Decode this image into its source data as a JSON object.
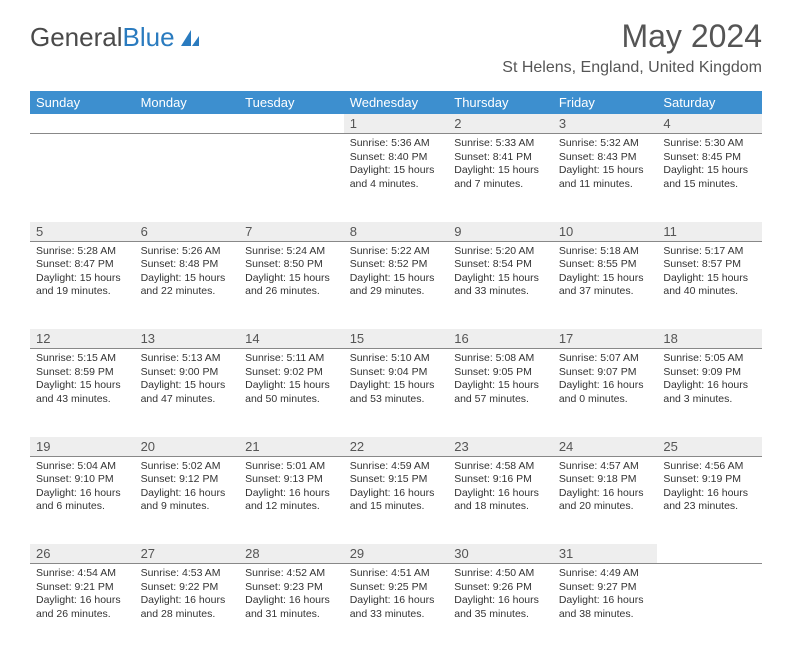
{
  "logo": {
    "text1": "General",
    "text2": "Blue"
  },
  "title": "May 2024",
  "location": "St Helens, England, United Kingdom",
  "colors": {
    "header_bg": "#3d8fcf",
    "header_text": "#ffffff",
    "daynum_bg": "#eeeeee",
    "text": "#333333",
    "title_text": "#555555",
    "logo_gray": "#4a4a4a",
    "logo_blue": "#2a7bbf"
  },
  "weekdays": [
    "Sunday",
    "Monday",
    "Tuesday",
    "Wednesday",
    "Thursday",
    "Friday",
    "Saturday"
  ],
  "weeks": [
    [
      null,
      null,
      null,
      {
        "n": "1",
        "sunrise": "5:36 AM",
        "sunset": "8:40 PM",
        "daylight": "15 hours and 4 minutes."
      },
      {
        "n": "2",
        "sunrise": "5:33 AM",
        "sunset": "8:41 PM",
        "daylight": "15 hours and 7 minutes."
      },
      {
        "n": "3",
        "sunrise": "5:32 AM",
        "sunset": "8:43 PM",
        "daylight": "15 hours and 11 minutes."
      },
      {
        "n": "4",
        "sunrise": "5:30 AM",
        "sunset": "8:45 PM",
        "daylight": "15 hours and 15 minutes."
      }
    ],
    [
      {
        "n": "5",
        "sunrise": "5:28 AM",
        "sunset": "8:47 PM",
        "daylight": "15 hours and 19 minutes."
      },
      {
        "n": "6",
        "sunrise": "5:26 AM",
        "sunset": "8:48 PM",
        "daylight": "15 hours and 22 minutes."
      },
      {
        "n": "7",
        "sunrise": "5:24 AM",
        "sunset": "8:50 PM",
        "daylight": "15 hours and 26 minutes."
      },
      {
        "n": "8",
        "sunrise": "5:22 AM",
        "sunset": "8:52 PM",
        "daylight": "15 hours and 29 minutes."
      },
      {
        "n": "9",
        "sunrise": "5:20 AM",
        "sunset": "8:54 PM",
        "daylight": "15 hours and 33 minutes."
      },
      {
        "n": "10",
        "sunrise": "5:18 AM",
        "sunset": "8:55 PM",
        "daylight": "15 hours and 37 minutes."
      },
      {
        "n": "11",
        "sunrise": "5:17 AM",
        "sunset": "8:57 PM",
        "daylight": "15 hours and 40 minutes."
      }
    ],
    [
      {
        "n": "12",
        "sunrise": "5:15 AM",
        "sunset": "8:59 PM",
        "daylight": "15 hours and 43 minutes."
      },
      {
        "n": "13",
        "sunrise": "5:13 AM",
        "sunset": "9:00 PM",
        "daylight": "15 hours and 47 minutes."
      },
      {
        "n": "14",
        "sunrise": "5:11 AM",
        "sunset": "9:02 PM",
        "daylight": "15 hours and 50 minutes."
      },
      {
        "n": "15",
        "sunrise": "5:10 AM",
        "sunset": "9:04 PM",
        "daylight": "15 hours and 53 minutes."
      },
      {
        "n": "16",
        "sunrise": "5:08 AM",
        "sunset": "9:05 PM",
        "daylight": "15 hours and 57 minutes."
      },
      {
        "n": "17",
        "sunrise": "5:07 AM",
        "sunset": "9:07 PM",
        "daylight": "16 hours and 0 minutes."
      },
      {
        "n": "18",
        "sunrise": "5:05 AM",
        "sunset": "9:09 PM",
        "daylight": "16 hours and 3 minutes."
      }
    ],
    [
      {
        "n": "19",
        "sunrise": "5:04 AM",
        "sunset": "9:10 PM",
        "daylight": "16 hours and 6 minutes."
      },
      {
        "n": "20",
        "sunrise": "5:02 AM",
        "sunset": "9:12 PM",
        "daylight": "16 hours and 9 minutes."
      },
      {
        "n": "21",
        "sunrise": "5:01 AM",
        "sunset": "9:13 PM",
        "daylight": "16 hours and 12 minutes."
      },
      {
        "n": "22",
        "sunrise": "4:59 AM",
        "sunset": "9:15 PM",
        "daylight": "16 hours and 15 minutes."
      },
      {
        "n": "23",
        "sunrise": "4:58 AM",
        "sunset": "9:16 PM",
        "daylight": "16 hours and 18 minutes."
      },
      {
        "n": "24",
        "sunrise": "4:57 AM",
        "sunset": "9:18 PM",
        "daylight": "16 hours and 20 minutes."
      },
      {
        "n": "25",
        "sunrise": "4:56 AM",
        "sunset": "9:19 PM",
        "daylight": "16 hours and 23 minutes."
      }
    ],
    [
      {
        "n": "26",
        "sunrise": "4:54 AM",
        "sunset": "9:21 PM",
        "daylight": "16 hours and 26 minutes."
      },
      {
        "n": "27",
        "sunrise": "4:53 AM",
        "sunset": "9:22 PM",
        "daylight": "16 hours and 28 minutes."
      },
      {
        "n": "28",
        "sunrise": "4:52 AM",
        "sunset": "9:23 PM",
        "daylight": "16 hours and 31 minutes."
      },
      {
        "n": "29",
        "sunrise": "4:51 AM",
        "sunset": "9:25 PM",
        "daylight": "16 hours and 33 minutes."
      },
      {
        "n": "30",
        "sunrise": "4:50 AM",
        "sunset": "9:26 PM",
        "daylight": "16 hours and 35 minutes."
      },
      {
        "n": "31",
        "sunrise": "4:49 AM",
        "sunset": "9:27 PM",
        "daylight": "16 hours and 38 minutes."
      },
      null
    ]
  ]
}
